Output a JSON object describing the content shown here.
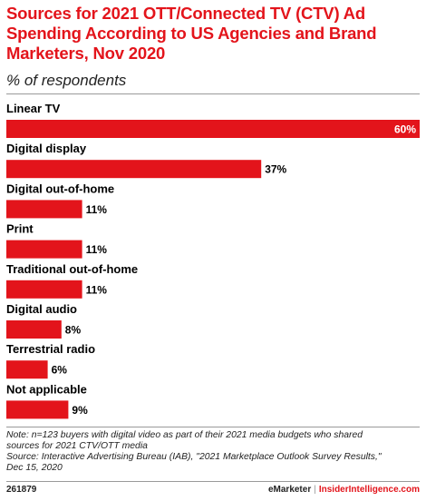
{
  "header": {
    "title": "Sources for 2021 OTT/Connected TV (CTV) Ad Spending According to US Agencies and Brand Marketers, Nov 2020",
    "subtitle": "% of respondents"
  },
  "chart_data": {
    "type": "bar",
    "orientation": "horizontal",
    "title": "Sources for 2021 OTT/Connected TV (CTV) Ad Spending According to US Agencies and Brand Marketers, Nov 2020",
    "subtitle": "% of respondents",
    "categories": [
      "Linear TV",
      "Digital display",
      "Digital out-of-home",
      "Print",
      "Traditional out-of-home",
      "Digital audio",
      "Terrestrial radio",
      "Not applicable"
    ],
    "values": [
      60,
      37,
      11,
      11,
      11,
      8,
      6,
      9
    ],
    "value_labels": [
      "60%",
      "37%",
      "11%",
      "11%",
      "11%",
      "8%",
      "6%",
      "9%"
    ],
    "xlim": [
      0,
      60
    ],
    "grid": false,
    "bar_color": "#e3141b"
  },
  "notes": {
    "line1": "Note: n=123 buyers with digital video as part of their 2021 media budgets who shared",
    "line2": "sources for 2021 CTV/OTT media",
    "line3": "Source: Interactive Advertising Bureau (IAB), \"2021 Marketplace Outlook Survey Results,\"",
    "line4": "Dec 15, 2020"
  },
  "footer": {
    "chart_id": "261879",
    "brand_left": "eMarketer",
    "separator": "|",
    "brand_right": "InsiderIntelligence.com"
  }
}
